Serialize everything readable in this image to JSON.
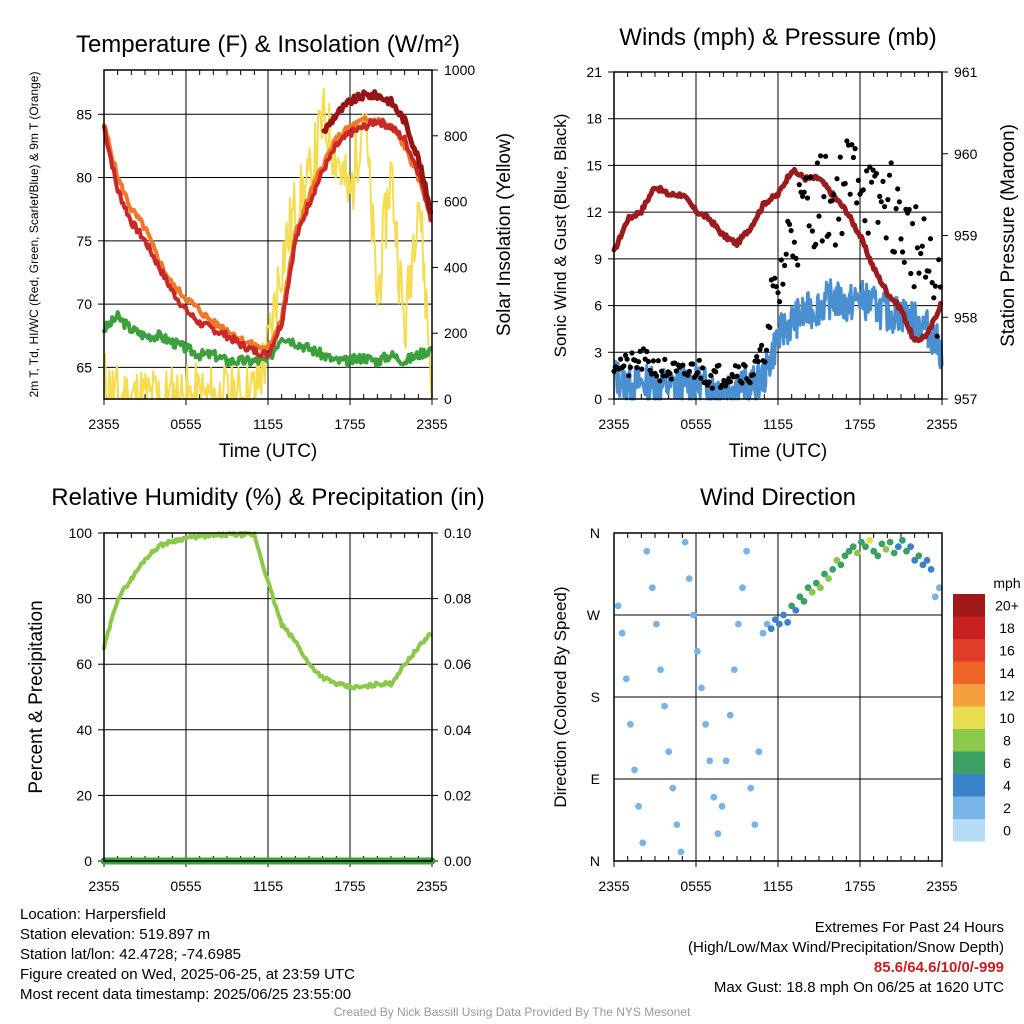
{
  "meta": {
    "location": "Location: Harpersfield",
    "elevation": "Station elevation: 519.897 m",
    "latlon": "Station lat/lon: 42.4728; -74.6985",
    "created": "Figure created on Wed, 2025-06-25, at 23:59 UTC",
    "recent": "Most recent data timestamp: 2025/06/25 23:55:00",
    "extremes_title": "Extremes For Past 24 Hours",
    "extremes_sub": "(High/Low/Max Wind/Precipitation/Snow Depth)",
    "extremes_values": "85.6/64.6/10/0/-999",
    "max_gust": "Max Gust: 18.8 mph On 06/25 at 1620 UTC",
    "credit": "Created By Nick Bassill Using Data Provided By The NYS Mesonet"
  },
  "chart_data": [
    {
      "type": "line",
      "title": "Temperature (F) & Insolation (W/m²)",
      "xlabel": "Time (UTC)",
      "ylabel_left": "2m T, Td, HI/WC (Red, Green, Scarlet/Blue) & 9m T (Orange)",
      "ylabel_right": "Solar Insolation (Yellow)",
      "x_ticks": [
        "2355",
        "0555",
        "1155",
        "1755",
        "2355"
      ],
      "y_left_ticks": [
        65,
        70,
        75,
        80,
        85
      ],
      "y_left_range": [
        62.5,
        88.5
      ],
      "y_right_ticks": [
        0,
        200,
        400,
        600,
        800,
        1000
      ],
      "y_right_range": [
        0,
        1000
      ],
      "colors": {
        "temp": "#c82828",
        "dewpoint": "#3ca03c",
        "heat_index": "#961414",
        "temp9m": "#f07828",
        "solar": "#f5dc50"
      },
      "x_hours": [
        0,
        1,
        2,
        3,
        4,
        5,
        6,
        7,
        8,
        9,
        10,
        11,
        12,
        13,
        14,
        15,
        16,
        17,
        18,
        19,
        20,
        21,
        22,
        23,
        24
      ],
      "series": [
        {
          "key": "temp",
          "values": [
            84.0,
            79.0,
            76.5,
            75.0,
            73.0,
            71.0,
            69.5,
            68.5,
            68.0,
            67.5,
            66.8,
            66.3,
            66.0,
            68.5,
            75.0,
            78.0,
            80.5,
            82.5,
            83.5,
            84.0,
            84.5,
            84.0,
            83.0,
            80.5,
            76.5
          ]
        },
        {
          "key": "temp9m",
          "values": [
            84.2,
            80.0,
            77.5,
            76.0,
            73.5,
            71.5,
            70.5,
            69.5,
            68.5,
            68.0,
            67.2,
            66.7,
            66.4,
            69.0,
            75.5,
            78.5,
            81.0,
            83.0,
            84.0,
            84.5,
            84.5,
            84.0,
            82.5,
            80.0,
            77.0
          ]
        },
        {
          "key": "dewpoint",
          "values": [
            68.0,
            69.0,
            68.0,
            67.5,
            67.5,
            67.0,
            66.5,
            66.0,
            66.0,
            65.5,
            65.5,
            65.5,
            65.5,
            67.5,
            67.0,
            66.5,
            66.0,
            65.5,
            65.5,
            65.8,
            65.5,
            66.0,
            65.5,
            66.0,
            66.5
          ]
        },
        {
          "key": "heat_index",
          "values": [
            null,
            null,
            null,
            null,
            null,
            null,
            null,
            null,
            null,
            null,
            null,
            null,
            null,
            null,
            null,
            null,
            83.5,
            85.0,
            86.0,
            86.5,
            86.5,
            86.0,
            84.5,
            81.5,
            77.0
          ]
        },
        {
          "key": "solar",
          "values": [
            50,
            0,
            0,
            0,
            0,
            0,
            0,
            0,
            0,
            0,
            0,
            20,
            150,
            420,
            580,
            650,
            850,
            750,
            600,
            900,
            300,
            700,
            200,
            650,
            30
          ]
        }
      ]
    },
    {
      "type": "scatter",
      "title": "Winds (mph) & Pressure (mb)",
      "xlabel": "Time (UTC)",
      "ylabel_left": "Sonic Wind & Gust (Blue, Black)",
      "ylabel_right": "Station Pressure (Maroon)",
      "x_ticks": [
        "2355",
        "0555",
        "1155",
        "1755",
        "2355"
      ],
      "y_left_ticks": [
        0,
        3,
        6,
        9,
        12,
        15,
        18,
        21
      ],
      "y_left_range": [
        0,
        21
      ],
      "y_right_ticks": [
        957,
        958,
        959,
        960,
        961
      ],
      "y_right_range": [
        957,
        961
      ],
      "colors": {
        "wind": "#4a8fd0",
        "gust": "#000000",
        "pressure": "#9a1c1c"
      },
      "x_hours": [
        0,
        1,
        2,
        3,
        4,
        5,
        6,
        7,
        8,
        9,
        10,
        11,
        12,
        13,
        14,
        15,
        16,
        17,
        18,
        19,
        20,
        21,
        22,
        23,
        24
      ],
      "series": [
        {
          "key": "wind",
          "values": [
            1.5,
            1.0,
            1.0,
            1.0,
            0.8,
            1.0,
            1.0,
            0.8,
            0.8,
            1.0,
            0.8,
            1.5,
            4.0,
            5.0,
            5.5,
            6.0,
            6.5,
            6.0,
            6.5,
            6.0,
            5.5,
            5.5,
            5.0,
            4.5,
            3.0
          ]
        },
        {
          "key": "gust",
          "values": [
            2.5,
            2.0,
            2.5,
            2.0,
            1.8,
            1.5,
            2.0,
            1.5,
            1.5,
            2.0,
            1.5,
            3.0,
            7.0,
            11.0,
            12.0,
            13.0,
            12.5,
            14.0,
            15.0,
            12.0,
            13.0,
            11.0,
            10.0,
            8.0,
            6.0
          ]
        },
        {
          "key": "pressure",
          "values": [
            958.8,
            959.2,
            959.3,
            959.6,
            959.5,
            959.5,
            959.3,
            959.2,
            959.0,
            958.9,
            959.1,
            959.4,
            959.5,
            959.8,
            959.7,
            959.7,
            959.5,
            959.3,
            959.0,
            958.6,
            958.3,
            958.1,
            957.7,
            957.8,
            958.2
          ]
        }
      ]
    },
    {
      "type": "line",
      "title": "Relative Humidity (%) & Precipitation (in)",
      "xlabel": "",
      "ylabel_left": "Percent & Precipitation",
      "ylabel_right": "",
      "x_ticks": [
        "2355",
        "0555",
        "1155",
        "1755",
        "2355"
      ],
      "y_left_ticks": [
        0,
        20,
        40,
        60,
        80,
        100
      ],
      "y_left_range": [
        0,
        100
      ],
      "y_right_ticks": [
        "0.00",
        "0.02",
        "0.04",
        "0.06",
        "0.08",
        "0.10"
      ],
      "y_right_range": [
        0,
        0.1
      ],
      "colors": {
        "rh": "#8cc84b",
        "precip": "#3ca03c"
      },
      "x_hours": [
        0,
        1,
        2,
        3,
        4,
        5,
        6,
        7,
        8,
        9,
        10,
        11,
        12,
        13,
        14,
        15,
        16,
        17,
        18,
        19,
        20,
        21,
        22,
        23,
        24
      ],
      "series": [
        {
          "key": "rh",
          "values": [
            65,
            80,
            86,
            92,
            96,
            97.5,
            98.5,
            99,
            99.2,
            99.5,
            99.5,
            99.5,
            85,
            72,
            67,
            60,
            56,
            54,
            53,
            53,
            54,
            54,
            60,
            65,
            70
          ]
        },
        {
          "key": "precip",
          "values": [
            0,
            0,
            0,
            0,
            0,
            0,
            0,
            0,
            0,
            0,
            0,
            0,
            0,
            0,
            0,
            0,
            0,
            0,
            0,
            0,
            0,
            0,
            0,
            0,
            0
          ]
        }
      ]
    },
    {
      "type": "scatter",
      "title": "Wind Direction",
      "xlabel": "",
      "ylabel_left": "Direction (Colored By Speed)",
      "x_ticks": [
        "2355",
        "0555",
        "1155",
        "1755",
        "2355"
      ],
      "y_ticks": [
        "N",
        "W",
        "S",
        "E",
        "N"
      ],
      "y_range_degrees": [
        0,
        360
      ],
      "legend": {
        "title": "mph",
        "labels": [
          "20+",
          "18",
          "16",
          "14",
          "12",
          "10",
          "8",
          "6",
          "4",
          "2",
          "0"
        ],
        "colors": [
          "#a01818",
          "#c82020",
          "#e03c28",
          "#f06428",
          "#f5a03c",
          "#e8dc50",
          "#8cc84b",
          "#3ca064",
          "#3c82c8",
          "#78b4e6",
          "#b4dcf5"
        ]
      },
      "points": [
        {
          "h": 0.3,
          "d": 280,
          "s": 1
        },
        {
          "h": 0.6,
          "d": 250,
          "s": 1
        },
        {
          "h": 0.9,
          "d": 200,
          "s": 1
        },
        {
          "h": 1.2,
          "d": 150,
          "s": 1
        },
        {
          "h": 1.5,
          "d": 100,
          "s": 1
        },
        {
          "h": 1.8,
          "d": 60,
          "s": 1
        },
        {
          "h": 2.1,
          "d": 20,
          "s": 1
        },
        {
          "h": 2.4,
          "d": 340,
          "s": 1
        },
        {
          "h": 2.8,
          "d": 300,
          "s": 1
        },
        {
          "h": 3.1,
          "d": 260,
          "s": 1
        },
        {
          "h": 3.4,
          "d": 210,
          "s": 1
        },
        {
          "h": 3.7,
          "d": 170,
          "s": 1
        },
        {
          "h": 4.0,
          "d": 120,
          "s": 1
        },
        {
          "h": 4.3,
          "d": 80,
          "s": 1
        },
        {
          "h": 4.6,
          "d": 40,
          "s": 1
        },
        {
          "h": 4.9,
          "d": 10,
          "s": 1
        },
        {
          "h": 5.2,
          "d": 350,
          "s": 1
        },
        {
          "h": 5.5,
          "d": 310,
          "s": 1
        },
        {
          "h": 5.8,
          "d": 270,
          "s": 1
        },
        {
          "h": 6.1,
          "d": 230,
          "s": 1
        },
        {
          "h": 6.4,
          "d": 190,
          "s": 1
        },
        {
          "h": 6.7,
          "d": 150,
          "s": 1
        },
        {
          "h": 7.0,
          "d": 110,
          "s": 1
        },
        {
          "h": 7.3,
          "d": 70,
          "s": 1
        },
        {
          "h": 7.6,
          "d": 30,
          "s": 1
        },
        {
          "h": 7.9,
          "d": 60,
          "s": 1
        },
        {
          "h": 8.2,
          "d": 110,
          "s": 1
        },
        {
          "h": 8.5,
          "d": 160,
          "s": 1
        },
        {
          "h": 8.8,
          "d": 210,
          "s": 1
        },
        {
          "h": 9.1,
          "d": 260,
          "s": 1
        },
        {
          "h": 9.4,
          "d": 300,
          "s": 1
        },
        {
          "h": 9.7,
          "d": 340,
          "s": 1
        },
        {
          "h": 10.0,
          "d": 80,
          "s": 1
        },
        {
          "h": 10.3,
          "d": 40,
          "s": 1
        },
        {
          "h": 10.6,
          "d": 120,
          "s": 1
        },
        {
          "h": 10.9,
          "d": 250,
          "s": 2
        },
        {
          "h": 11.2,
          "d": 260,
          "s": 2
        },
        {
          "h": 11.5,
          "d": 255,
          "s": 3
        },
        {
          "h": 11.8,
          "d": 265,
          "s": 3
        },
        {
          "h": 12.1,
          "d": 260,
          "s": 4
        },
        {
          "h": 12.4,
          "d": 270,
          "s": 4
        },
        {
          "h": 12.7,
          "d": 262,
          "s": 3
        },
        {
          "h": 13.0,
          "d": 280,
          "s": 5
        },
        {
          "h": 13.3,
          "d": 275,
          "s": 4
        },
        {
          "h": 13.6,
          "d": 290,
          "s": 6
        },
        {
          "h": 13.9,
          "d": 285,
          "s": 5
        },
        {
          "h": 14.2,
          "d": 300,
          "s": 6
        },
        {
          "h": 14.5,
          "d": 295,
          "s": 7
        },
        {
          "h": 14.8,
          "d": 305,
          "s": 6
        },
        {
          "h": 15.1,
          "d": 300,
          "s": 7
        },
        {
          "h": 15.4,
          "d": 315,
          "s": 6
        },
        {
          "h": 15.7,
          "d": 310,
          "s": 7
        },
        {
          "h": 16.0,
          "d": 320,
          "s": 6
        },
        {
          "h": 16.3,
          "d": 330,
          "s": 7
        },
        {
          "h": 16.6,
          "d": 325,
          "s": 6
        },
        {
          "h": 16.9,
          "d": 335,
          "s": 5
        },
        {
          "h": 17.2,
          "d": 340,
          "s": 6
        },
        {
          "h": 17.5,
          "d": 345,
          "s": 5
        },
        {
          "h": 17.8,
          "d": 338,
          "s": 7
        },
        {
          "h": 18.1,
          "d": 350,
          "s": 6
        },
        {
          "h": 18.4,
          "d": 345,
          "s": 5
        },
        {
          "h": 18.7,
          "d": 352,
          "s": 9
        },
        {
          "h": 19.0,
          "d": 340,
          "s": 6
        },
        {
          "h": 19.3,
          "d": 335,
          "s": 5
        },
        {
          "h": 19.6,
          "d": 348,
          "s": 6
        },
        {
          "h": 19.9,
          "d": 342,
          "s": 7
        },
        {
          "h": 20.2,
          "d": 350,
          "s": 5
        },
        {
          "h": 20.5,
          "d": 338,
          "s": 6
        },
        {
          "h": 20.8,
          "d": 345,
          "s": 4
        },
        {
          "h": 21.1,
          "d": 352,
          "s": 6
        },
        {
          "h": 21.4,
          "d": 340,
          "s": 5
        },
        {
          "h": 21.7,
          "d": 345,
          "s": 4
        },
        {
          "h": 22.0,
          "d": 330,
          "s": 4
        },
        {
          "h": 22.3,
          "d": 335,
          "s": 5
        },
        {
          "h": 22.6,
          "d": 325,
          "s": 4
        },
        {
          "h": 22.9,
          "d": 330,
          "s": 3
        },
        {
          "h": 23.2,
          "d": 320,
          "s": 4
        },
        {
          "h": 23.5,
          "d": 290,
          "s": 2
        },
        {
          "h": 23.8,
          "d": 300,
          "s": 2
        }
      ]
    }
  ]
}
